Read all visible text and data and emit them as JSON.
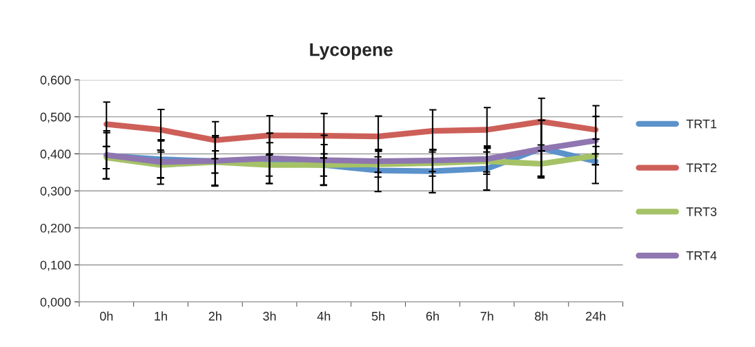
{
  "chart_data": {
    "type": "line",
    "title": "Lycopene",
    "categories": [
      "0h",
      "1h",
      "2h",
      "3h",
      "4h",
      "5h",
      "6h",
      "7h",
      "8h",
      "24h"
    ],
    "series": [
      {
        "name": "TRT1",
        "color": "#5b92cb",
        "values": [
          0.395,
          0.385,
          0.38,
          0.375,
          0.37,
          0.355,
          0.353,
          0.36,
          0.415,
          0.38
        ],
        "errors": [
          0.062,
          0.05,
          0.065,
          0.055,
          0.055,
          0.057,
          0.058,
          0.058,
          0.075,
          0.06
        ]
      },
      {
        "name": "TRT2",
        "color": "#cd5f59",
        "values": [
          0.48,
          0.465,
          0.437,
          0.45,
          0.449,
          0.447,
          0.462,
          0.465,
          0.487,
          0.465
        ],
        "errors": [
          0.06,
          0.055,
          0.05,
          0.053,
          0.06,
          0.055,
          0.057,
          0.06,
          0.063,
          0.065
        ]
      },
      {
        "name": "TRT3",
        "color": "#a5c267",
        "values": [
          0.39,
          0.37,
          0.378,
          0.37,
          0.37,
          0.372,
          0.375,
          0.38,
          0.373,
          0.395
        ],
        "errors": [
          0.03,
          0.035,
          0.03,
          0.03,
          0.03,
          0.035,
          0.035,
          0.035,
          0.035,
          0.025
        ]
      },
      {
        "name": "TRT4",
        "color": "#8f76b0",
        "values": [
          0.397,
          0.378,
          0.381,
          0.388,
          0.383,
          0.38,
          0.382,
          0.386,
          0.413,
          0.436
        ],
        "errors": [
          0.065,
          0.06,
          0.068,
          0.068,
          0.067,
          0.03,
          0.03,
          0.035,
          0.078,
          0.065
        ]
      }
    ],
    "ylim": [
      0,
      0.6
    ],
    "yticks": [
      {
        "value": 0,
        "label": "0,000"
      },
      {
        "value": 0.1,
        "label": "0,100"
      },
      {
        "value": 0.2,
        "label": "0,200"
      },
      {
        "value": 0.3,
        "label": "0,300"
      },
      {
        "value": 0.4,
        "label": "0,400"
      },
      {
        "value": 0.5,
        "label": "0,500"
      },
      {
        "value": 0.6,
        "label": "0,600"
      }
    ],
    "grid": "y",
    "legend": "right",
    "marker": "none",
    "line_style": "solid"
  }
}
